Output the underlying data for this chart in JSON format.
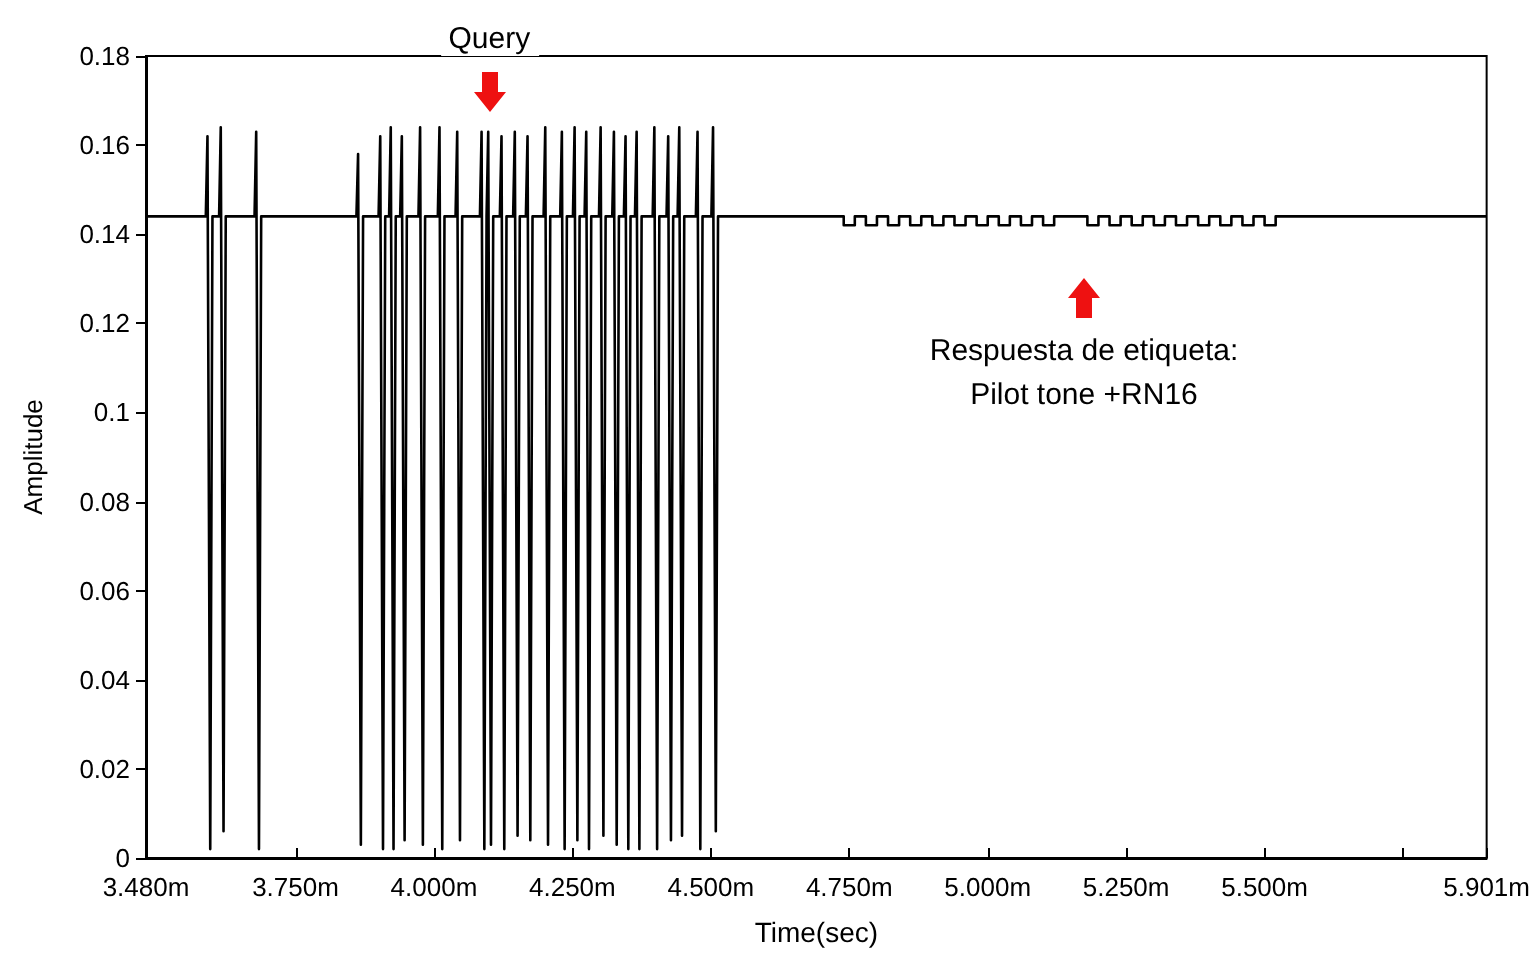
{
  "chart_data": {
    "type": "line",
    "xlabel": "Time(sec)",
    "ylabel": "Amplitude",
    "xlim": [
      3.48,
      5.901
    ],
    "xticks": [
      {
        "value": 3.48,
        "label": "3.480m"
      },
      {
        "value": 3.75,
        "label": "3.750m"
      },
      {
        "value": 4,
        "label": "4.000m"
      },
      {
        "value": 4.25,
        "label": "4.250m"
      },
      {
        "value": 4.5,
        "label": "4.500m"
      },
      {
        "value": 4.75,
        "label": "4.750m"
      },
      {
        "value": 5,
        "label": "5.000m"
      },
      {
        "value": 5.25,
        "label": "5.250m"
      },
      {
        "value": 5.5,
        "label": "5.500m"
      },
      {
        "value": 5.75,
        "label": null
      },
      {
        "value": 5.901,
        "label": "5.901m"
      }
    ],
    "ylim": [
      0,
      0.18
    ],
    "yticks": [
      0,
      0.02,
      0.04,
      0.06,
      0.08,
      0.1,
      0.12,
      0.14,
      0.16,
      0.18
    ],
    "grid": false,
    "marker": "none",
    "line_style": "solid",
    "annotations": [
      {
        "text": "Query",
        "x": 4.1,
        "y": 0.164
      },
      "Respuesta de etiqueta:\nPilot tone +RN16"
    ],
    "series": [
      {
        "color": "#000000",
        "x": [
          3.48,
          3.588,
          3.591,
          3.596,
          3.6,
          3.612,
          3.615,
          3.62,
          3.624,
          3.676,
          3.679,
          3.684,
          3.688,
          3.86,
          3.863,
          3.868,
          3.872,
          3.9,
          3.903,
          3.908,
          3.912,
          3.919,
          3.922,
          3.927,
          3.931,
          3.939,
          3.942,
          3.947,
          3.951,
          3.972,
          3.975,
          3.98,
          3.984,
          4.007,
          4.01,
          4.015,
          4.019,
          4.039,
          4.042,
          4.047,
          4.051,
          4.083,
          4.086,
          4.091,
          4.095,
          4.095,
          4.098,
          4.103,
          4.107,
          4.119,
          4.122,
          4.127,
          4.131,
          4.143,
          4.146,
          4.151,
          4.155,
          4.166,
          4.169,
          4.174,
          4.178,
          4.198,
          4.201,
          4.206,
          4.21,
          4.228,
          4.231,
          4.236,
          4.24,
          4.251,
          4.254,
          4.259,
          4.263,
          4.272,
          4.275,
          4.28,
          4.284,
          4.298,
          4.301,
          4.306,
          4.31,
          4.322,
          4.325,
          4.33,
          4.334,
          4.343,
          4.346,
          4.351,
          4.355,
          4.363,
          4.366,
          4.371,
          4.375,
          4.395,
          4.398,
          4.403,
          4.407,
          4.42,
          4.423,
          4.428,
          4.432,
          4.44,
          4.443,
          4.448,
          4.452,
          4.473,
          4.476,
          4.481,
          4.485,
          4.501,
          4.504,
          4.509,
          4.513,
          4.74,
          4.74,
          4.76,
          4.76,
          4.78,
          4.78,
          4.8,
          4.8,
          4.82,
          4.82,
          4.84,
          4.84,
          4.86,
          4.86,
          4.88,
          4.88,
          4.9,
          4.9,
          4.92,
          4.92,
          4.94,
          4.94,
          4.96,
          4.96,
          4.98,
          4.98,
          5,
          5,
          5.02,
          5.02,
          5.04,
          5.04,
          5.06,
          5.06,
          5.08,
          5.08,
          5.1,
          5.1,
          5.12,
          5.12,
          5.18,
          5.18,
          5.2,
          5.2,
          5.22,
          5.22,
          5.24,
          5.24,
          5.26,
          5.26,
          5.28,
          5.28,
          5.3,
          5.3,
          5.32,
          5.32,
          5.34,
          5.34,
          5.36,
          5.36,
          5.38,
          5.38,
          5.4,
          5.4,
          5.42,
          5.42,
          5.44,
          5.44,
          5.46,
          5.46,
          5.48,
          5.48,
          5.5,
          5.5,
          5.52,
          5.52,
          5.901
        ],
        "values": [
          0.144,
          0.144,
          0.162,
          0.002,
          0.144,
          0.144,
          0.164,
          0.006,
          0.144,
          0.144,
          0.163,
          0.002,
          0.144,
          0.144,
          0.158,
          0.003,
          0.144,
          0.144,
          0.162,
          0.002,
          0.144,
          0.144,
          0.164,
          0.002,
          0.144,
          0.144,
          0.162,
          0.004,
          0.144,
          0.144,
          0.164,
          0.003,
          0.144,
          0.144,
          0.164,
          0.002,
          0.144,
          0.144,
          0.163,
          0.004,
          0.144,
          0.144,
          0.163,
          0.002,
          0.144,
          0.144,
          0.163,
          0.003,
          0.144,
          0.144,
          0.162,
          0.002,
          0.144,
          0.144,
          0.163,
          0.005,
          0.144,
          0.144,
          0.162,
          0.004,
          0.144,
          0.144,
          0.164,
          0.003,
          0.144,
          0.144,
          0.163,
          0.002,
          0.144,
          0.144,
          0.164,
          0.004,
          0.144,
          0.144,
          0.163,
          0.002,
          0.144,
          0.144,
          0.164,
          0.005,
          0.144,
          0.144,
          0.163,
          0.003,
          0.144,
          0.144,
          0.162,
          0.002,
          0.144,
          0.144,
          0.163,
          0.002,
          0.144,
          0.144,
          0.164,
          0.002,
          0.144,
          0.144,
          0.162,
          0.004,
          0.144,
          0.144,
          0.164,
          0.005,
          0.144,
          0.144,
          0.163,
          0.002,
          0.144,
          0.144,
          0.164,
          0.006,
          0.144,
          0.144,
          0.142,
          0.142,
          0.144,
          0.144,
          0.142,
          0.142,
          0.144,
          0.144,
          0.142,
          0.142,
          0.144,
          0.144,
          0.142,
          0.142,
          0.144,
          0.144,
          0.142,
          0.142,
          0.144,
          0.144,
          0.142,
          0.142,
          0.144,
          0.144,
          0.142,
          0.142,
          0.144,
          0.144,
          0.142,
          0.142,
          0.144,
          0.144,
          0.142,
          0.142,
          0.144,
          0.144,
          0.142,
          0.142,
          0.144,
          0.144,
          0.142,
          0.142,
          0.144,
          0.144,
          0.142,
          0.142,
          0.144,
          0.144,
          0.142,
          0.142,
          0.144,
          0.144,
          0.142,
          0.142,
          0.144,
          0.144,
          0.142,
          0.142,
          0.144,
          0.144,
          0.142,
          0.142,
          0.144,
          0.144,
          0.142,
          0.142,
          0.144,
          0.144,
          0.142,
          0.142,
          0.144,
          0.144,
          0.142,
          0.142,
          0.144,
          0.144
        ]
      }
    ]
  }
}
